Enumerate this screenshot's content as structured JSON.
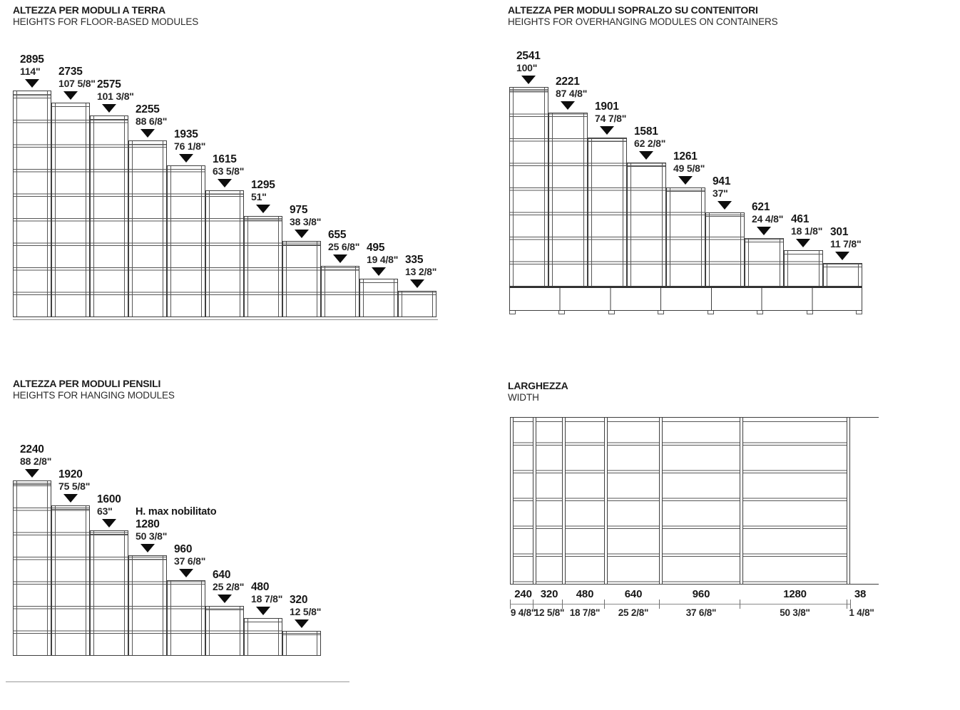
{
  "sections": {
    "floor": {
      "title_it": "ALTEZZA PER MODULI A TERRA",
      "title_en": "HEIGHTS FOR FLOOR-BASED MODULES",
      "modules": [
        {
          "mm": 2895,
          "in": "114\""
        },
        {
          "mm": 2735,
          "in": "107 5/8\""
        },
        {
          "mm": 2575,
          "in": "101 3/8\""
        },
        {
          "mm": 2255,
          "in": "88 6/8\""
        },
        {
          "mm": 1935,
          "in": "76 1/8\""
        },
        {
          "mm": 1615,
          "in": "63 5/8\""
        },
        {
          "mm": 1295,
          "in": "51\""
        },
        {
          "mm": 975,
          "in": "38 3/8\""
        },
        {
          "mm": 655,
          "in": "25 6/8\""
        },
        {
          "mm": 495,
          "in": "19 4/8\""
        },
        {
          "mm": 335,
          "in": "13 2/8\""
        }
      ]
    },
    "overhang": {
      "title_it": "ALTEZZA PER MODULI SOPRALZO SU CONTENITORI",
      "title_en": "HEIGHTS FOR OVERHANGING MODULES ON CONTAINERS",
      "modules": [
        {
          "mm": 2541,
          "in": "100\""
        },
        {
          "mm": 2221,
          "in": "87 4/8\""
        },
        {
          "mm": 1901,
          "in": "74 7/8\""
        },
        {
          "mm": 1581,
          "in": "62 2/8\""
        },
        {
          "mm": 1261,
          "in": "49 5/8\""
        },
        {
          "mm": 941,
          "in": "37\""
        },
        {
          "mm": 621,
          "in": "24 4/8\""
        },
        {
          "mm": 461,
          "in": "18 1/8\""
        },
        {
          "mm": 301,
          "in": "11 7/8\""
        }
      ],
      "base_segments": 7,
      "base_feet": 8
    },
    "hanging": {
      "title_it": "ALTEZZA PER MODULI PENSILI",
      "title_en": "HEIGHTS FOR HANGING MODULES",
      "modules": [
        {
          "mm": 2240,
          "in": "88 2/8\""
        },
        {
          "mm": 1920,
          "in": "75 5/8\""
        },
        {
          "mm": 1600,
          "in": "63\""
        },
        {
          "mm": 1280,
          "in": "50 3/8\"",
          "note": "H. max nobilitato"
        },
        {
          "mm": 960,
          "in": "37 6/8\""
        },
        {
          "mm": 640,
          "in": "25 2/8\""
        },
        {
          "mm": 480,
          "in": "18 7/8\""
        },
        {
          "mm": 320,
          "in": "12 5/8\""
        }
      ]
    },
    "width": {
      "title_it": "LARGHEZZA",
      "title_en": "WIDTH",
      "segments": [
        {
          "mm": 240,
          "in": "9 4/8\""
        },
        {
          "mm": 320,
          "in": "12 5/8\""
        },
        {
          "mm": 480,
          "in": "18 7/8\""
        },
        {
          "mm": 640,
          "in": "25 2/8\""
        },
        {
          "mm": 960,
          "in": "37 6/8\""
        },
        {
          "mm": 1280,
          "in": "50 3/8\""
        }
      ],
      "upright": {
        "mm": 38,
        "in": "1 4/8\""
      },
      "shelf_rows": 6
    }
  },
  "colors": {
    "line": "#3f3f3f",
    "shelf": "#565656",
    "arrow": "#0d0d0d",
    "dim_line": "#8a8a8a"
  }
}
